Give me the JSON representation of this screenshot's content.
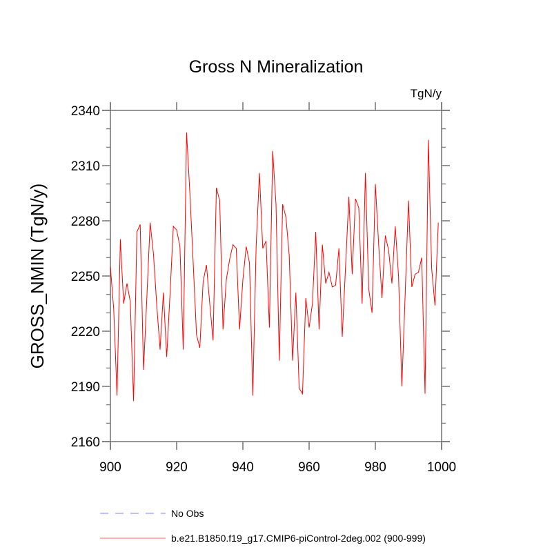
{
  "chart_data": {
    "type": "line",
    "title": "Gross N Mineralization",
    "units_label": "TgN/y",
    "xlabel": "",
    "ylabel": "GROSS_NMIN  (TgN/y)",
    "xlim": [
      900,
      1000
    ],
    "ylim": [
      2160,
      2340
    ],
    "x_major_ticks": [
      900,
      920,
      940,
      960,
      980,
      1000
    ],
    "x_tick_labels": [
      "900",
      "920",
      "940",
      "960",
      "980",
      "1000"
    ],
    "y_major_ticks": [
      2160,
      2190,
      2220,
      2250,
      2280,
      2310,
      2340
    ],
    "y_tick_labels": [
      "2160",
      "2190",
      "2220",
      "2250",
      "2280",
      "2310",
      "2340"
    ],
    "y_minor_step": 10,
    "grid": false,
    "legend_position": "bottom",
    "series": [
      {
        "name": "b.e21.B1850.f19_g17.CMIP6-piControl-2deg.002 (900-999)",
        "color": "#ff0000",
        "style": "solid",
        "x_start": 900,
        "x_step": 1,
        "values": [
          2255,
          2232,
          2185,
          2270,
          2235,
          2246,
          2236,
          2182,
          2274,
          2278,
          2199,
          2238,
          2279,
          2262,
          2234,
          2210,
          2241,
          2206,
          2240,
          2277,
          2275,
          2266,
          2210,
          2328,
          2295,
          2257,
          2218,
          2211,
          2247,
          2256,
          2235,
          2215,
          2298,
          2291,
          2221,
          2248,
          2259,
          2267,
          2265,
          2221,
          2248,
          2266,
          2257,
          2185,
          2266,
          2306,
          2265,
          2269,
          2222,
          2318,
          2289,
          2204,
          2289,
          2282,
          2261,
          2204,
          2241,
          2189,
          2186,
          2238,
          2222,
          2235,
          2274,
          2221,
          2267,
          2246,
          2252,
          2244,
          2245,
          2265,
          2217,
          2255,
          2293,
          2251,
          2292,
          2287,
          2235,
          2306,
          2243,
          2230,
          2300,
          2267,
          2238,
          2272,
          2264,
          2246,
          2277,
          2250,
          2190,
          2240,
          2291,
          2244,
          2251,
          2252,
          2260,
          2186,
          2324,
          2254,
          2234,
          2279
        ]
      },
      {
        "name": "No Obs",
        "color": "#8080ff",
        "style": "dashed",
        "values": []
      }
    ]
  }
}
